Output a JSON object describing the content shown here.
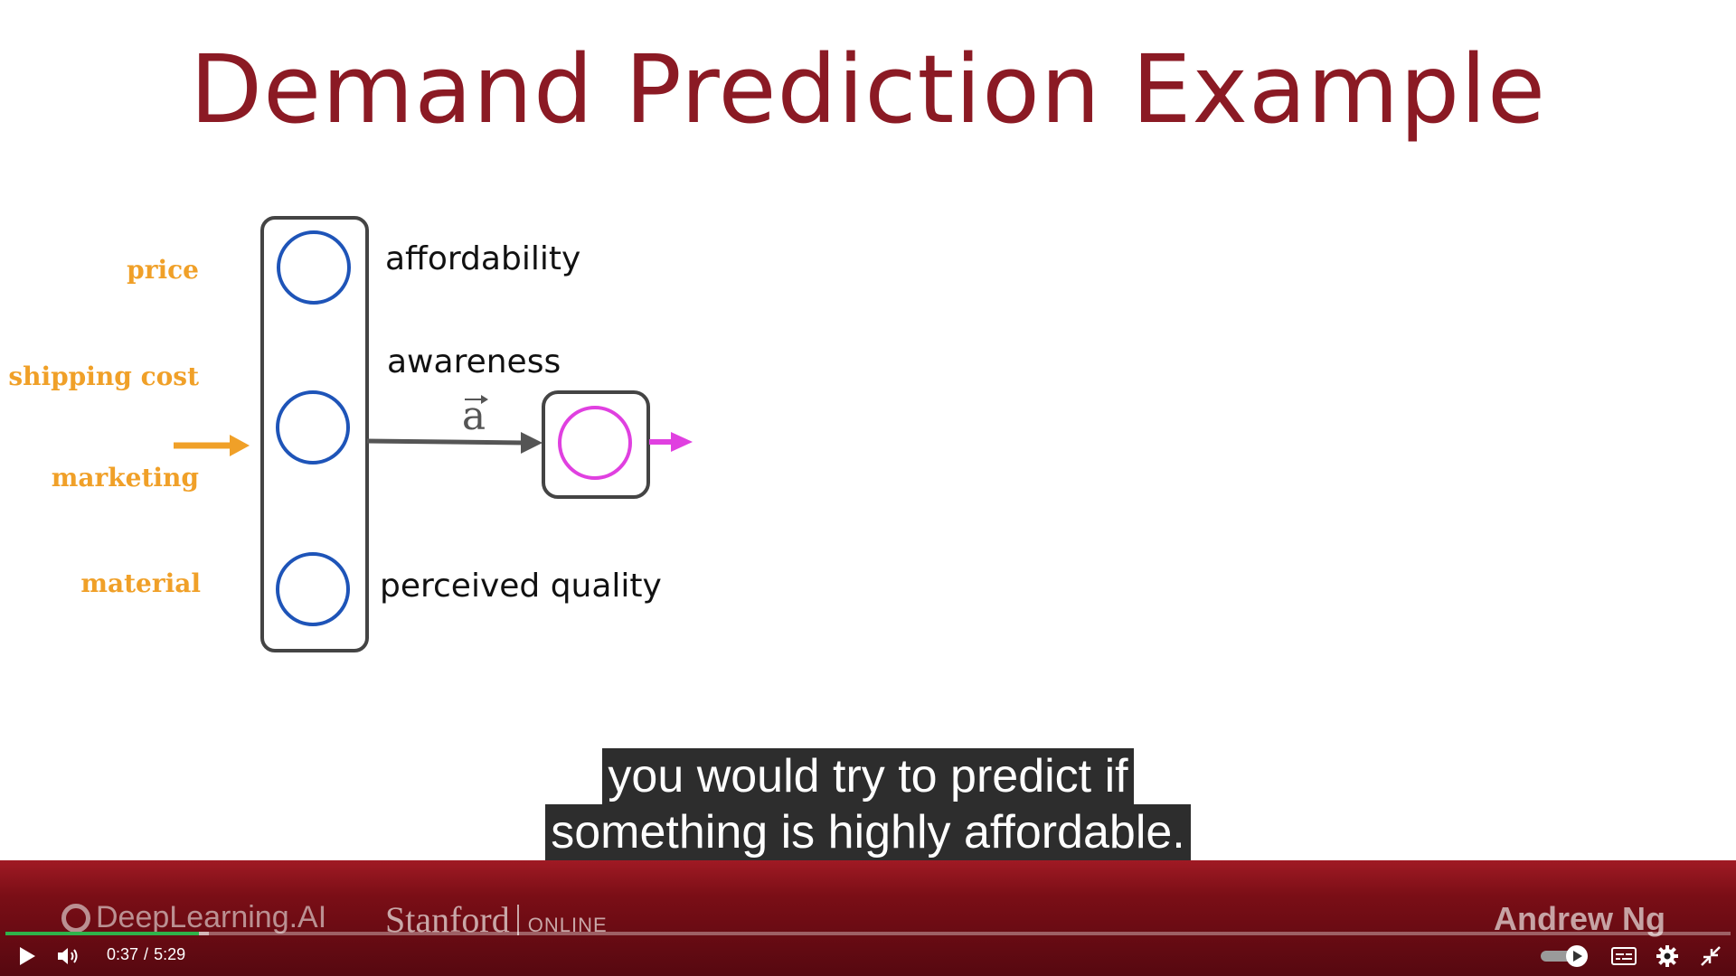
{
  "slide": {
    "title": "Demand Prediction Example",
    "inputs": [
      "price",
      "shipping cost",
      "marketing",
      "material"
    ],
    "features": [
      "affordability",
      "awareness",
      "perceived quality"
    ],
    "vector_label": "a",
    "colors": {
      "title": "#8b1a24",
      "inputs": "#f0a028",
      "hidden_node": "#1e54b8",
      "output_node": "#e040e0",
      "output_arrow": "#e040e0"
    }
  },
  "captions": {
    "line1": "you would try to predict if",
    "line2": "something is highly affordable."
  },
  "footer": {
    "deeplearning_logo": "DeepLearning.AI",
    "stanford_logo": "Stanford",
    "stanford_online": "ONLINE",
    "presenter": "Andrew Ng"
  },
  "player": {
    "current_time": "0:37",
    "separator": "/",
    "duration": "5:29",
    "progress_played_fraction": 0.112,
    "progress_loaded_fraction": 0.118,
    "play_icon": "play-icon",
    "volume_icon": "volume-icon",
    "captions_icon": "captions-icon",
    "settings_icon": "gear-icon",
    "exit_fullscreen_icon": "exit-fullscreen-icon",
    "accent": "#2fb34a"
  }
}
